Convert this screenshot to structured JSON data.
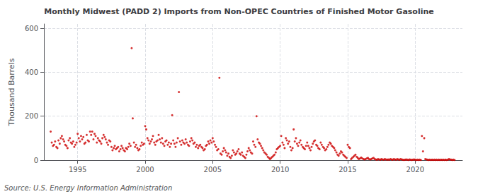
{
  "chart_data": {
    "type": "scatter",
    "title": "Monthly Midwest (PADD 2) Imports from Non-OPEC Countries of Finished Motor Gasoline",
    "ylabel": "Thousand Barrels",
    "annotations": [
      "Source: U.S. Energy Information Administration"
    ],
    "color": "#cc0000",
    "grid": true,
    "xlim": [
      1992.5,
      2023.5
    ],
    "ylim": [
      0,
      620
    ],
    "xticks": [
      1995,
      2000,
      2005,
      2010,
      2015,
      2020
    ],
    "yticks": [
      0,
      200,
      400,
      600
    ],
    "x": [
      1993.0,
      1993.08,
      1993.17,
      1993.25,
      1993.33,
      1993.42,
      1993.5,
      1993.58,
      1993.67,
      1993.75,
      1993.83,
      1993.92,
      1994.0,
      1994.08,
      1994.17,
      1994.25,
      1994.33,
      1994.42,
      1994.5,
      1994.58,
      1994.67,
      1994.75,
      1994.83,
      1994.92,
      1995.0,
      1995.08,
      1995.17,
      1995.25,
      1995.33,
      1995.42,
      1995.5,
      1995.58,
      1995.67,
      1995.75,
      1995.83,
      1995.92,
      1996.0,
      1996.08,
      1996.17,
      1996.25,
      1996.33,
      1996.42,
      1996.5,
      1996.58,
      1996.67,
      1996.75,
      1996.83,
      1996.92,
      1997.0,
      1997.08,
      1997.17,
      1997.25,
      1997.33,
      1997.42,
      1997.5,
      1997.58,
      1997.67,
      1997.75,
      1997.83,
      1997.92,
      1998.0,
      1998.08,
      1998.17,
      1998.25,
      1998.33,
      1998.42,
      1998.5,
      1998.58,
      1998.67,
      1998.75,
      1998.83,
      1998.92,
      1999.0,
      1999.08,
      1999.17,
      1999.25,
      1999.33,
      1999.42,
      1999.5,
      1999.58,
      1999.67,
      1999.75,
      1999.83,
      1999.92,
      2000.0,
      2000.08,
      2000.17,
      2000.25,
      2000.33,
      2000.42,
      2000.5,
      2000.58,
      2000.67,
      2000.75,
      2000.83,
      2000.92,
      2001.0,
      2001.08,
      2001.17,
      2001.25,
      2001.33,
      2001.42,
      2001.5,
      2001.58,
      2001.67,
      2001.75,
      2001.83,
      2001.92,
      2002.0,
      2002.08,
      2002.17,
      2002.25,
      2002.33,
      2002.42,
      2002.5,
      2002.58,
      2002.67,
      2002.75,
      2002.83,
      2002.92,
      2003.0,
      2003.08,
      2003.17,
      2003.25,
      2003.33,
      2003.42,
      2003.5,
      2003.58,
      2003.67,
      2003.75,
      2003.83,
      2003.92,
      2004.0,
      2004.08,
      2004.17,
      2004.25,
      2004.33,
      2004.42,
      2004.5,
      2004.58,
      2004.67,
      2004.75,
      2004.83,
      2004.92,
      2005.0,
      2005.08,
      2005.17,
      2005.25,
      2005.33,
      2005.42,
      2005.5,
      2005.58,
      2005.67,
      2005.75,
      2005.83,
      2005.92,
      2006.0,
      2006.08,
      2006.17,
      2006.25,
      2006.33,
      2006.42,
      2006.5,
      2006.58,
      2006.67,
      2006.75,
      2006.83,
      2006.92,
      2007.0,
      2007.08,
      2007.17,
      2007.25,
      2007.33,
      2007.42,
      2007.5,
      2007.58,
      2007.67,
      2007.75,
      2007.83,
      2007.92,
      2008.0,
      2008.08,
      2008.17,
      2008.25,
      2008.33,
      2008.42,
      2008.5,
      2008.58,
      2008.67,
      2008.75,
      2008.83,
      2008.92,
      2009.0,
      2009.08,
      2009.17,
      2009.25,
      2009.33,
      2009.42,
      2009.5,
      2009.58,
      2009.67,
      2009.75,
      2009.83,
      2009.92,
      2010.0,
      2010.08,
      2010.17,
      2010.25,
      2010.33,
      2010.42,
      2010.5,
      2010.58,
      2010.67,
      2010.75,
      2010.83,
      2010.92,
      2011.0,
      2011.08,
      2011.17,
      2011.25,
      2011.33,
      2011.42,
      2011.5,
      2011.58,
      2011.67,
      2011.75,
      2011.83,
      2011.92,
      2012.0,
      2012.08,
      2012.17,
      2012.25,
      2012.33,
      2012.42,
      2012.5,
      2012.58,
      2012.67,
      2012.75,
      2012.83,
      2012.92,
      2013.0,
      2013.08,
      2013.17,
      2013.25,
      2013.33,
      2013.42,
      2013.5,
      2013.58,
      2013.67,
      2013.75,
      2013.83,
      2013.92,
      2014.0,
      2014.08,
      2014.17,
      2014.25,
      2014.33,
      2014.42,
      2014.5,
      2014.58,
      2014.67,
      2014.75,
      2014.83,
      2014.92,
      2015.0,
      2015.08,
      2015.17,
      2015.25,
      2015.33,
      2015.42,
      2015.5,
      2015.58,
      2015.67,
      2015.75,
      2015.83,
      2015.92,
      2016.0,
      2016.08,
      2016.17,
      2016.25,
      2016.33,
      2016.42,
      2016.5,
      2016.58,
      2016.67,
      2016.75,
      2016.83,
      2016.92,
      2017.0,
      2017.08,
      2017.17,
      2017.25,
      2017.33,
      2017.42,
      2017.5,
      2017.58,
      2017.67,
      2017.75,
      2017.83,
      2017.92,
      2018.0,
      2018.08,
      2018.17,
      2018.25,
      2018.33,
      2018.42,
      2018.5,
      2018.58,
      2018.67,
      2018.75,
      2018.83,
      2018.92,
      2019.0,
      2019.08,
      2019.17,
      2019.25,
      2019.33,
      2019.42,
      2019.5,
      2019.58,
      2019.67,
      2019.75,
      2019.83,
      2019.92,
      2020.0,
      2020.08,
      2020.17,
      2020.25,
      2020.33,
      2020.42,
      2020.5,
      2020.58,
      2020.67,
      2020.75,
      2020.83,
      2020.92,
      2021.0,
      2021.08,
      2021.17,
      2021.25,
      2021.33,
      2021.42,
      2021.5,
      2021.58,
      2021.67,
      2021.75,
      2021.83,
      2021.92,
      2022.0,
      2022.08,
      2022.17,
      2022.25,
      2022.33,
      2022.42,
      2022.5,
      2022.58,
      2022.67,
      2022.75,
      2022.83,
      2022.92
    ],
    "values": [
      130,
      80,
      65,
      70,
      85,
      60,
      55,
      90,
      75,
      100,
      110,
      95,
      85,
      70,
      65,
      55,
      90,
      100,
      80,
      75,
      85,
      60,
      70,
      80,
      120,
      100,
      85,
      110,
      95,
      105,
      75,
      80,
      115,
      90,
      85,
      130,
      115,
      130,
      95,
      120,
      110,
      80,
      100,
      90,
      85,
      75,
      100,
      115,
      105,
      95,
      80,
      70,
      90,
      85,
      60,
      45,
      55,
      65,
      50,
      55,
      60,
      40,
      50,
      65,
      55,
      45,
      40,
      55,
      50,
      60,
      75,
      65,
      510,
      190,
      80,
      60,
      70,
      55,
      45,
      50,
      65,
      80,
      70,
      75,
      155,
      140,
      100,
      90,
      75,
      85,
      95,
      110,
      80,
      70,
      85,
      90,
      115,
      95,
      80,
      100,
      75,
      65,
      85,
      90,
      70,
      80,
      60,
      75,
      205,
      90,
      75,
      60,
      80,
      100,
      310,
      85,
      70,
      90,
      80,
      75,
      95,
      80,
      70,
      65,
      85,
      100,
      90,
      75,
      80,
      60,
      70,
      55,
      65,
      70,
      60,
      55,
      45,
      50,
      65,
      70,
      85,
      75,
      90,
      80,
      100,
      85,
      70,
      60,
      45,
      50,
      375,
      30,
      25,
      40,
      55,
      45,
      35,
      20,
      30,
      15,
      10,
      20,
      45,
      35,
      25,
      30,
      40,
      50,
      30,
      25,
      35,
      20,
      15,
      10,
      25,
      40,
      55,
      45,
      35,
      30,
      85,
      70,
      60,
      200,
      95,
      80,
      75,
      65,
      55,
      45,
      35,
      30,
      25,
      15,
      10,
      5,
      10,
      15,
      20,
      25,
      35,
      50,
      55,
      60,
      65,
      110,
      80,
      70,
      55,
      100,
      90,
      75,
      85,
      60,
      45,
      55,
      140,
      85,
      100,
      75,
      65,
      80,
      90,
      70,
      60,
      55,
      50,
      65,
      80,
      65,
      55,
      45,
      60,
      75,
      85,
      90,
      70,
      65,
      55,
      50,
      80,
      70,
      60,
      55,
      45,
      50,
      60,
      70,
      80,
      75,
      65,
      60,
      55,
      45,
      35,
      25,
      20,
      30,
      40,
      35,
      25,
      20,
      15,
      10,
      70,
      60,
      55,
      5,
      10,
      15,
      20,
      25,
      15,
      10,
      5,
      8,
      12,
      8,
      5,
      3,
      5,
      8,
      10,
      5,
      3,
      5,
      8,
      10,
      5,
      3,
      2,
      5,
      3,
      2,
      5,
      3,
      2,
      5,
      3,
      2,
      3,
      2,
      5,
      3,
      2,
      5,
      3,
      2,
      5,
      3,
      2,
      5,
      3,
      2,
      1,
      2,
      3,
      2,
      1,
      3,
      2,
      1,
      2,
      3,
      2,
      1,
      2,
      1,
      2,
      1,
      110,
      40,
      100,
      5,
      3,
      2,
      1,
      2,
      1,
      2,
      1,
      2,
      1,
      2,
      1,
      2,
      1,
      2,
      1,
      2,
      1,
      2,
      1,
      2,
      5,
      3,
      2,
      1,
      2,
      1
    ]
  }
}
